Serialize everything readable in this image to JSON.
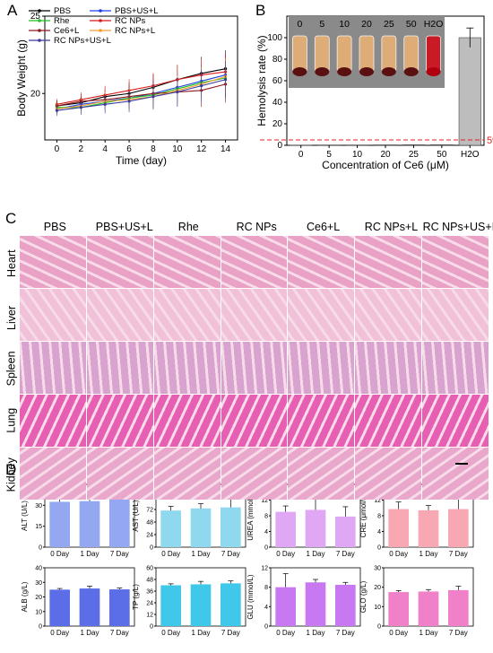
{
  "panels": {
    "A": "A",
    "B": "B",
    "C": "C",
    "D": "D"
  },
  "chart_data": [
    {
      "type": "line",
      "panel": "A",
      "xlabel": "Time (day)",
      "ylabel": "Body Weight (g)",
      "x": [
        0,
        2,
        4,
        6,
        8,
        10,
        12,
        14
      ],
      "xlim": [
        -1,
        15
      ],
      "ylim": [
        17,
        25
      ],
      "xticks": [
        "0",
        "2",
        "4",
        "6",
        "8",
        "10",
        "12",
        "14"
      ],
      "yticks": [
        "20",
        "25"
      ],
      "series": [
        {
          "name": "PBS",
          "color": "#000000",
          "values": [
            19.2,
            19.4,
            19.8,
            20.0,
            20.4,
            20.9,
            21.3,
            21.6
          ]
        },
        {
          "name": "PBS+US+L",
          "color": "#1f3fe0",
          "values": [
            19.0,
            19.3,
            19.5,
            19.7,
            20.0,
            20.4,
            20.8,
            21.2
          ]
        },
        {
          "name": "Rhe",
          "color": "#22c022",
          "values": [
            19.1,
            19.1,
            19.4,
            19.7,
            19.9,
            20.3,
            20.7,
            21.0
          ]
        },
        {
          "name": "RC NPs",
          "color": "#d81b1b",
          "values": [
            19.3,
            19.6,
            19.9,
            20.2,
            20.5,
            20.9,
            21.2,
            21.4
          ]
        },
        {
          "name": "Ce6+L",
          "color": "#8b1a1a",
          "values": [
            19.2,
            19.5,
            19.6,
            19.8,
            20.0,
            20.1,
            20.2,
            20.6
          ]
        },
        {
          "name": "RC NPs+L",
          "color": "#f0a030",
          "values": [
            19.0,
            19.2,
            19.5,
            19.6,
            19.8,
            20.2,
            20.6,
            21.1
          ]
        },
        {
          "name": "RC NPs+US+L",
          "color": "#3a3aa0",
          "values": [
            18.9,
            19.1,
            19.3,
            19.5,
            19.8,
            20.1,
            20.5,
            20.9
          ]
        }
      ]
    },
    {
      "type": "bar",
      "panel": "B",
      "xlabel": "Concentration of Ce6 (μM)",
      "ylabel": "Hemolysis rate (%)",
      "categories": [
        "0",
        "5",
        "10",
        "20",
        "25",
        "50",
        "H2O"
      ],
      "values": [
        0.2,
        0.3,
        0.3,
        0.4,
        0.5,
        0.6,
        100
      ],
      "ylim": [
        0,
        120
      ],
      "yticks": [
        "0",
        "20",
        "40",
        "60",
        "80",
        "100"
      ],
      "threshold": {
        "value": 5,
        "label": "5%"
      },
      "inset_labels": [
        "0",
        "5",
        "10",
        "20",
        "25",
        "50",
        "H2O"
      ]
    },
    {
      "type": "bar",
      "panel": "D",
      "ylabel": "ALT (U/L)",
      "color": "#93a8f0",
      "categories": [
        "0 Day",
        "1 Day",
        "7 Day"
      ],
      "values": [
        32.5,
        33,
        35.5
      ],
      "errors": [
        3,
        2,
        2.5
      ],
      "ylim": [
        0,
        45
      ],
      "yticks": [
        "0",
        "15",
        "30",
        "45"
      ]
    },
    {
      "type": "bar",
      "panel": "D",
      "ylabel": "AST (U/L)",
      "color": "#8fd8ee",
      "categories": [
        "0 Day",
        "1 Day",
        "7 Day"
      ],
      "values": [
        70,
        74,
        76
      ],
      "errors": [
        8,
        9,
        17
      ],
      "ylim": [
        0,
        120
      ],
      "yticks": [
        "0",
        "24",
        "48",
        "72",
        "96",
        "120"
      ]
    },
    {
      "type": "bar",
      "panel": "D",
      "ylabel": "UREA (mmol/L)",
      "color": "#e0a8f4",
      "categories": [
        "0 Day",
        "1 Day",
        "7 Day"
      ],
      "values": [
        9,
        9.5,
        7.8
      ],
      "errors": [
        1.5,
        3.5,
        2.5
      ],
      "ylim": [
        0,
        16
      ],
      "yticks": [
        "0",
        "4",
        "8",
        "12",
        "16"
      ]
    },
    {
      "type": "bar",
      "panel": "D",
      "ylabel": "CRE (μmol/L)",
      "color": "#f8a8b2",
      "categories": [
        "0 Day",
        "1 Day",
        "7 Day"
      ],
      "values": [
        9.7,
        9.4,
        9.7
      ],
      "errors": [
        1.8,
        1.2,
        3.0
      ],
      "ylim": [
        0,
        16
      ],
      "yticks": [
        "0",
        "4",
        "8",
        "12",
        "16"
      ]
    },
    {
      "type": "bar",
      "panel": "D",
      "ylabel": "ALB (g/L)",
      "color": "#5b6ee8",
      "categories": [
        "0 Day",
        "1 Day",
        "7 Day"
      ],
      "values": [
        25,
        25.8,
        25.2
      ],
      "errors": [
        0.8,
        1.6,
        0.9
      ],
      "ylim": [
        0,
        40
      ],
      "yticks": [
        "0",
        "10",
        "20",
        "30",
        "40"
      ]
    },
    {
      "type": "bar",
      "panel": "D",
      "ylabel": "TP (g/L)",
      "color": "#40c8ea",
      "categories": [
        "0 Day",
        "1 Day",
        "7 Day"
      ],
      "values": [
        42,
        43,
        44
      ],
      "errors": [
        1.5,
        3,
        2.5
      ],
      "ylim": [
        0,
        60
      ],
      "yticks": [
        "0",
        "12",
        "24",
        "36",
        "48",
        "60"
      ]
    },
    {
      "type": "bar",
      "panel": "D",
      "ylabel": "GLU (mmol/L)",
      "color": "#c878f0",
      "categories": [
        "0 Day",
        "1 Day",
        "7 Day"
      ],
      "values": [
        8.0,
        9.0,
        8.5
      ],
      "errors": [
        2.8,
        0.6,
        0.5
      ],
      "ylim": [
        0,
        12
      ],
      "yticks": [
        "0",
        "4",
        "8",
        "12"
      ]
    },
    {
      "type": "bar",
      "panel": "D",
      "ylabel": "GLO (g/L)",
      "color": "#f080c8",
      "categories": [
        "0 Day",
        "1 Day",
        "7 Day"
      ],
      "values": [
        17.5,
        17.8,
        18.5
      ],
      "errors": [
        0.8,
        1.0,
        2.0
      ],
      "ylim": [
        0,
        30
      ],
      "yticks": [
        "0",
        "10",
        "20",
        "30"
      ]
    }
  ],
  "histology": {
    "columns": [
      "PBS",
      "PBS+US+L",
      "Rhe",
      "RC NPs",
      "Ce6+L",
      "RC NPs+L",
      "RC NPs+US+L"
    ],
    "rows": [
      "Heart",
      "Liver",
      "Spleen",
      "Lung",
      "Kidney"
    ],
    "row_colors": [
      "#e9a2c6",
      "#f1c1da",
      "#d8a4cf",
      "#e65fb2",
      "#e8a7cb"
    ]
  }
}
